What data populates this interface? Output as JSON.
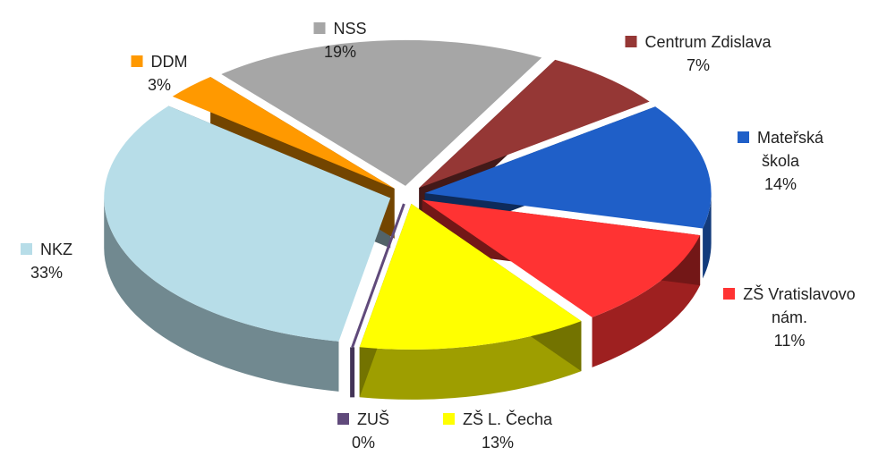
{
  "chart_data": {
    "type": "pie3d",
    "categories": [
      "NSS",
      "Centrum Zdislava",
      "Mateřská škola",
      "ZŠ Vratislavovo nám.",
      "ZŠ L. Čecha",
      "ZUŠ",
      "NKZ",
      "DDM"
    ],
    "values": [
      19,
      7,
      14,
      11,
      13,
      0,
      33,
      3
    ],
    "value_labels": [
      "19%",
      "7%",
      "14%",
      "11%",
      "13%",
      "0%",
      "33%",
      "3%"
    ],
    "colors": [
      "#a6a6a6",
      "#953735",
      "#1f5fc8",
      "#ff3333",
      "#ffff00",
      "#604a7b",
      "#b7dde8",
      "#ff9900"
    ]
  }
}
